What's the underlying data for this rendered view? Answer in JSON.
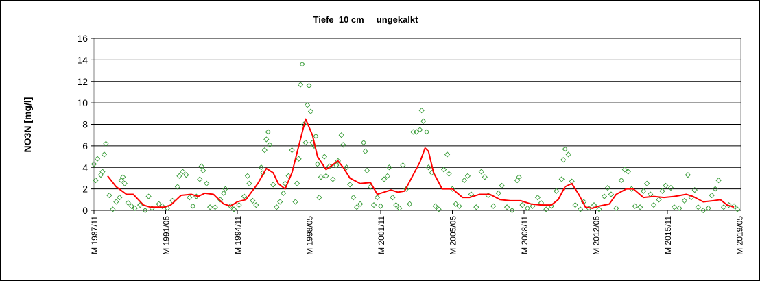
{
  "chart_data": {
    "type": "scatter-line",
    "title": "Tiefe  10 cm     ungekalkt",
    "ylabel": "NO3N [mg/l]",
    "ylim": [
      0,
      16
    ],
    "yticks": [
      0,
      2,
      4,
      6,
      8,
      10,
      12,
      14,
      16
    ],
    "xlim": [
      "1987-11",
      "2019-06"
    ],
    "xticks": [
      {
        "value": "1987-11",
        "label": "M 1987/11"
      },
      {
        "value": "1991-05",
        "label": "M 1991/05"
      },
      {
        "value": "1994-11",
        "label": "M 1994/11"
      },
      {
        "value": "1998-05",
        "label": "M 1998/05"
      },
      {
        "value": "2001-11",
        "label": "M 2001/11"
      },
      {
        "value": "2005-05",
        "label": "M 2005/05"
      },
      {
        "value": "2008-11",
        "label": "M 2008/11"
      },
      {
        "value": "2012-05",
        "label": "M 2012/05"
      },
      {
        "value": "2015-11",
        "label": "M 2015/11"
      },
      {
        "value": "2019-05",
        "label": "M 2019/05"
      }
    ],
    "grid": true,
    "series": [
      {
        "kind": "scatter",
        "color": "#339933",
        "x": [
          "1987-11",
          "1987-12",
          "1988-01",
          "1988-03",
          "1988-04",
          "1988-05",
          "1988-06",
          "1988-08",
          "1988-10",
          "1988-12",
          "1989-02",
          "1989-03",
          "1989-04",
          "1989-05",
          "1989-07",
          "1989-09",
          "1989-11",
          "1990-02",
          "1990-05",
          "1990-07",
          "1990-09",
          "1991-01",
          "1991-03",
          "1991-06",
          "1991-09",
          "1991-12",
          "1992-01",
          "1992-03",
          "1992-05",
          "1992-07",
          "1992-09",
          "1992-11",
          "1993-01",
          "1993-02",
          "1993-03",
          "1993-05",
          "1993-07",
          "1993-10",
          "1994-01",
          "1994-03",
          "1994-04",
          "1994-07",
          "1994-09",
          "1994-12",
          "1995-03",
          "1995-05",
          "1995-06",
          "1995-08",
          "1995-10",
          "1996-01",
          "1996-02",
          "1996-03",
          "1996-04",
          "1996-05",
          "1996-06",
          "1996-08",
          "1996-10",
          "1996-12",
          "1997-02",
          "1997-03",
          "1997-05",
          "1997-07",
          "1997-09",
          "1997-10",
          "1997-11",
          "1997-12",
          "1998-01",
          "1998-02",
          "1998-03",
          "1998-04",
          "1998-05",
          "1998-06",
          "1998-07",
          "1998-08",
          "1998-09",
          "1998-10",
          "1998-11",
          "1998-12",
          "1999-02",
          "1999-03",
          "1999-05",
          "1999-07",
          "1999-09",
          "1999-10",
          "1999-12",
          "2000-01",
          "2000-03",
          "2000-05",
          "2000-07",
          "2000-09",
          "2000-11",
          "2001-01",
          "2001-02",
          "2001-03",
          "2001-05",
          "2001-07",
          "2001-09",
          "2001-11",
          "2002-01",
          "2002-03",
          "2002-04",
          "2002-06",
          "2002-08",
          "2002-10",
          "2002-12",
          "2003-02",
          "2003-04",
          "2003-06",
          "2003-08",
          "2003-10",
          "2003-11",
          "2003-12",
          "2004-02",
          "2004-03",
          "2004-05",
          "2004-07",
          "2004-09",
          "2004-12",
          "2005-02",
          "2005-03",
          "2005-05",
          "2005-07",
          "2005-09",
          "2005-12",
          "2006-02",
          "2006-04",
          "2006-07",
          "2006-10",
          "2006-12",
          "2007-02",
          "2007-05",
          "2007-08",
          "2007-10",
          "2008-01",
          "2008-04",
          "2008-07",
          "2008-08",
          "2008-10",
          "2009-01",
          "2009-04",
          "2009-07",
          "2009-09",
          "2009-12",
          "2010-03",
          "2010-06",
          "2010-09",
          "2010-10",
          "2010-11",
          "2011-01",
          "2011-03",
          "2011-05",
          "2011-08",
          "2011-10",
          "2012-01",
          "2012-04",
          "2012-07",
          "2012-10",
          "2012-12",
          "2013-02",
          "2013-05",
          "2013-08",
          "2013-10",
          "2013-12",
          "2014-02",
          "2014-04",
          "2014-07",
          "2014-09",
          "2014-11",
          "2015-01",
          "2015-03",
          "2015-06",
          "2015-08",
          "2015-10",
          "2016-01",
          "2016-03",
          "2016-06",
          "2016-09",
          "2016-11",
          "2017-01",
          "2017-03",
          "2017-05",
          "2017-08",
          "2017-11",
          "2018-01",
          "2018-03",
          "2018-05",
          "2018-08",
          "2018-11",
          "2019-02",
          "2019-04"
        ],
        "values": [
          4.3,
          2.8,
          4.8,
          3.3,
          3.6,
          5.2,
          6.2,
          1.4,
          0.1,
          0.8,
          1.2,
          2.8,
          3.1,
          2.5,
          0.7,
          0.4,
          0.2,
          0.5,
          0.0,
          1.3,
          0.2,
          0.6,
          0.4,
          0.2,
          0.9,
          2.2,
          3.2,
          3.6,
          3.3,
          1.2,
          0.4,
          1.3,
          2.9,
          4.1,
          3.7,
          2.5,
          0.3,
          0.3,
          1.0,
          1.6,
          2.0,
          0.4,
          0.1,
          0.5,
          1.3,
          3.2,
          2.5,
          0.9,
          0.5,
          4.0,
          3.5,
          5.6,
          6.6,
          7.3,
          6.1,
          2.4,
          0.3,
          0.8,
          1.6,
          2.5,
          3.2,
          5.6,
          0.8,
          2.5,
          4.8,
          11.7,
          13.6,
          8.0,
          6.3,
          9.8,
          11.6,
          9.2,
          6.3,
          6.0,
          6.9,
          4.3,
          1.2,
          3.1,
          5.0,
          3.2,
          4.1,
          2.9,
          4.2,
          4.6,
          7.0,
          6.1,
          4.0,
          2.4,
          1.2,
          0.3,
          0.6,
          6.3,
          5.5,
          3.7,
          2.2,
          0.5,
          1.2,
          0.4,
          2.9,
          3.2,
          4.0,
          1.2,
          0.5,
          0.2,
          4.2,
          2.0,
          0.6,
          7.3,
          7.3,
          7.5,
          9.3,
          8.3,
          7.3,
          4.0,
          3.5,
          0.4,
          0.1,
          3.8,
          5.2,
          3.4,
          2.0,
          0.6,
          0.4,
          2.8,
          3.2,
          1.5,
          0.3,
          3.6,
          3.1,
          1.4,
          0.4,
          1.6,
          2.3,
          0.3,
          0.0,
          2.8,
          3.1,
          0.5,
          0.2,
          0.4,
          1.2,
          0.7,
          0.1,
          0.4,
          1.8,
          2.9,
          4.7,
          5.7,
          5.2,
          2.7,
          0.5,
          0.1,
          0.8,
          0.2,
          0.5,
          0.1,
          1.3,
          2.1,
          1.5,
          0.2,
          2.8,
          3.8,
          3.6,
          2.0,
          0.4,
          0.3,
          1.8,
          2.5,
          1.5,
          0.5,
          1.0,
          1.8,
          2.3,
          2.1,
          0.3,
          0.2,
          0.9,
          3.3,
          1.2,
          1.9,
          0.3,
          0.0,
          0.2,
          1.4,
          2.0,
          2.8,
          0.3,
          0.5,
          0.4,
          0.1
        ]
      },
      {
        "kind": "line",
        "color": "#ff0000",
        "x": [
          "1988-07",
          "1988-12",
          "1989-06",
          "1989-10",
          "1990-04",
          "1990-08",
          "1991-04",
          "1991-08",
          "1992-02",
          "1992-08",
          "1992-12",
          "1993-04",
          "1993-09",
          "1994-03",
          "1994-07",
          "1994-11",
          "1995-04",
          "1995-11",
          "1996-04",
          "1996-08",
          "1996-11",
          "1997-03",
          "1997-07",
          "1997-11",
          "1998-03",
          "1998-07",
          "1998-10",
          "1999-03",
          "1999-10",
          "2000-01",
          "2000-05",
          "2000-11",
          "2001-05",
          "2001-09",
          "2002-01",
          "2002-05",
          "2002-09",
          "2003-01",
          "2003-05",
          "2003-10",
          "2004-01",
          "2004-03",
          "2004-06",
          "2004-11",
          "2005-05",
          "2005-11",
          "2006-03",
          "2006-09",
          "2007-03",
          "2007-09",
          "2008-03",
          "2008-09",
          "2009-03",
          "2009-09",
          "2010-03",
          "2010-07",
          "2010-11",
          "2011-03",
          "2011-07",
          "2011-11",
          "2012-03",
          "2012-07",
          "2013-01",
          "2013-05",
          "2013-11",
          "2014-03",
          "2014-09",
          "2015-03",
          "2015-09",
          "2016-03",
          "2016-10",
          "2017-02",
          "2017-08",
          "2018-02",
          "2018-06",
          "2018-10",
          "2019-02"
        ],
        "values": [
          3.2,
          2.2,
          1.5,
          1.5,
          0.5,
          0.3,
          0.3,
          0.5,
          1.4,
          1.5,
          1.3,
          1.6,
          1.5,
          0.6,
          0.4,
          0.8,
          1.0,
          2.5,
          3.9,
          3.5,
          2.5,
          2.0,
          3.5,
          6.0,
          8.5,
          7.0,
          5.0,
          3.8,
          4.6,
          4.0,
          3.0,
          2.5,
          2.6,
          1.5,
          1.7,
          1.9,
          1.7,
          1.8,
          3.0,
          4.5,
          5.8,
          5.5,
          3.5,
          2.0,
          2.0,
          1.2,
          1.2,
          1.5,
          1.5,
          1.0,
          0.9,
          0.9,
          0.6,
          0.5,
          0.5,
          1.0,
          2.2,
          2.5,
          1.5,
          0.3,
          0.2,
          0.4,
          0.6,
          1.5,
          2.0,
          2.0,
          1.2,
          1.3,
          1.2,
          1.3,
          1.5,
          1.3,
          0.8,
          0.9,
          1.0,
          0.5,
          0.3
        ]
      }
    ]
  }
}
